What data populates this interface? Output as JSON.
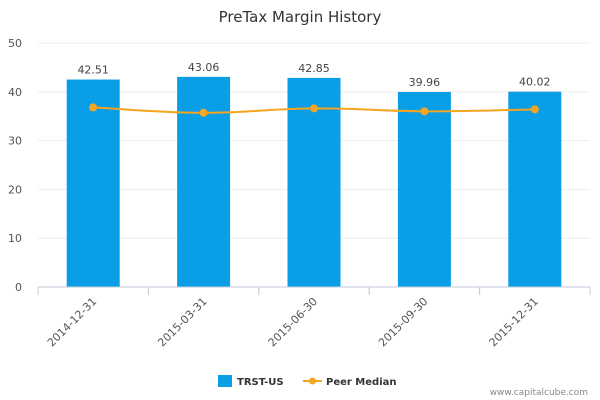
{
  "chart_data": {
    "type": "bar",
    "title": "PreTax Margin History",
    "xlabel": "",
    "ylabel": "",
    "ylim": [
      0,
      50
    ],
    "yticks": [
      "0",
      "10",
      "20",
      "30",
      "40",
      "50"
    ],
    "categories": [
      "2014-12-31",
      "2015-03-31",
      "2015-06-30",
      "2015-09-30",
      "2015-12-31"
    ],
    "series": [
      {
        "name": "TRST-US",
        "type": "bar",
        "values": [
          42.51,
          43.06,
          42.85,
          39.96,
          40.02
        ],
        "labels": [
          "42.51",
          "43.06",
          "42.85",
          "39.96",
          "40.02"
        ],
        "color": "#0a9ee6"
      },
      {
        "name": "Peer Median",
        "type": "line",
        "values": [
          36.8,
          35.7,
          36.6,
          36.0,
          36.4
        ],
        "color": "#f5a51f"
      }
    ],
    "legend": "bottom-center"
  },
  "credit": "www.capitalcube.com"
}
